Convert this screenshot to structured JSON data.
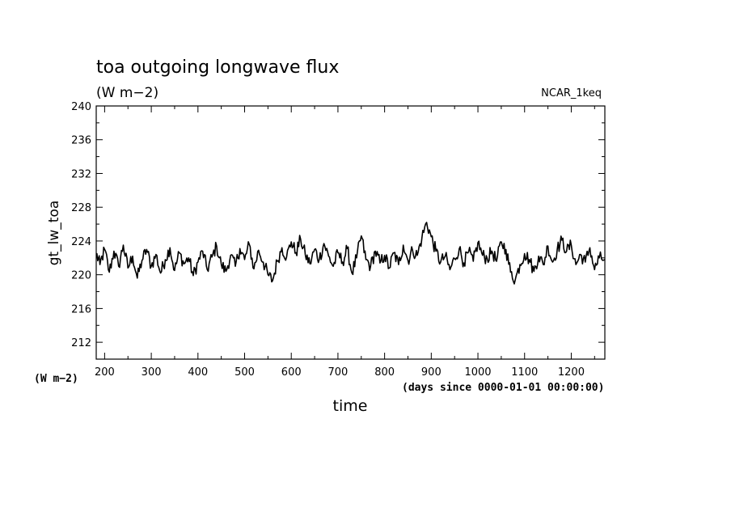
{
  "chart_data": {
    "type": "line",
    "title": "toa outgoing longwave flux",
    "subtitle": "(W m−2)",
    "run_label": "NCAR_1keq",
    "ylabel": "gt_lw_toa",
    "y_unit_label": "(W m−2)",
    "xlabel": "time",
    "x_unit_label": "(days since 0000-01-01 00:00:00)",
    "xlim": [
      182,
      1272
    ],
    "ylim": [
      210,
      240
    ],
    "x_ticks": [
      200,
      300,
      400,
      500,
      600,
      700,
      800,
      900,
      1000,
      1100,
      1200
    ],
    "y_ticks": [
      212,
      216,
      220,
      224,
      228,
      232,
      236,
      240
    ],
    "grid": false,
    "line_color": "#000000",
    "series": [
      {
        "x": [
          182,
          190,
          200,
          210,
          220,
          230,
          240,
          250,
          260,
          270,
          280,
          290,
          300,
          310,
          320,
          330,
          340,
          350,
          360,
          370,
          380,
          390,
          400,
          410,
          420,
          430,
          440,
          450,
          460,
          470,
          480,
          490,
          500,
          510,
          520,
          530,
          540,
          550,
          560,
          570,
          580,
          590,
          600,
          610,
          620,
          630,
          640,
          650,
          660,
          670,
          680,
          690,
          700,
          710,
          720,
          730,
          740,
          750,
          760,
          770,
          780,
          790,
          800,
          810,
          820,
          830,
          840,
          850,
          860,
          870,
          880,
          890,
          900,
          910,
          920,
          930,
          940,
          950,
          960,
          970,
          980,
          990,
          1000,
          1010,
          1020,
          1030,
          1040,
          1050,
          1060,
          1070,
          1080,
          1090,
          1100,
          1110,
          1120,
          1130,
          1140,
          1150,
          1160,
          1170,
          1180,
          1190,
          1200,
          1210,
          1220,
          1230,
          1240,
          1250,
          1260,
          1272
        ],
        "y": [
          222.5,
          221.2,
          223.0,
          220.3,
          222.8,
          221.0,
          223.5,
          220.8,
          222.2,
          219.6,
          221.7,
          223.0,
          221.0,
          222.4,
          220.2,
          221.8,
          223.2,
          220.5,
          222.6,
          221.3,
          222.0,
          219.9,
          221.5,
          222.8,
          220.6,
          222.1,
          223.4,
          221.2,
          220.4,
          222.3,
          221.0,
          223.1,
          221.8,
          223.6,
          220.7,
          222.9,
          221.5,
          220.0,
          219.3,
          221.6,
          223.2,
          222.1,
          223.9,
          222.6,
          224.2,
          222.4,
          221.3,
          223.0,
          221.8,
          223.7,
          222.2,
          221.0,
          222.6,
          221.5,
          223.1,
          220.2,
          222.0,
          224.6,
          221.8,
          221.0,
          222.8,
          221.4,
          222.3,
          220.8,
          222.6,
          221.2,
          223.5,
          221.7,
          222.9,
          222.3,
          224.4,
          226.2,
          224.5,
          222.8,
          221.5,
          222.2,
          220.6,
          221.9,
          223.1,
          221.4,
          222.7,
          221.6,
          223.8,
          222.3,
          221.9,
          222.8,
          221.6,
          223.9,
          223.0,
          220.3,
          219.4,
          221.2,
          222.5,
          221.8,
          220.4,
          222.2,
          221.2,
          223.4,
          221.5,
          223.0,
          224.1,
          222.8,
          223.5,
          221.2,
          222.4,
          221.5,
          223.2,
          220.6,
          222.0,
          221.8
        ]
      }
    ]
  }
}
